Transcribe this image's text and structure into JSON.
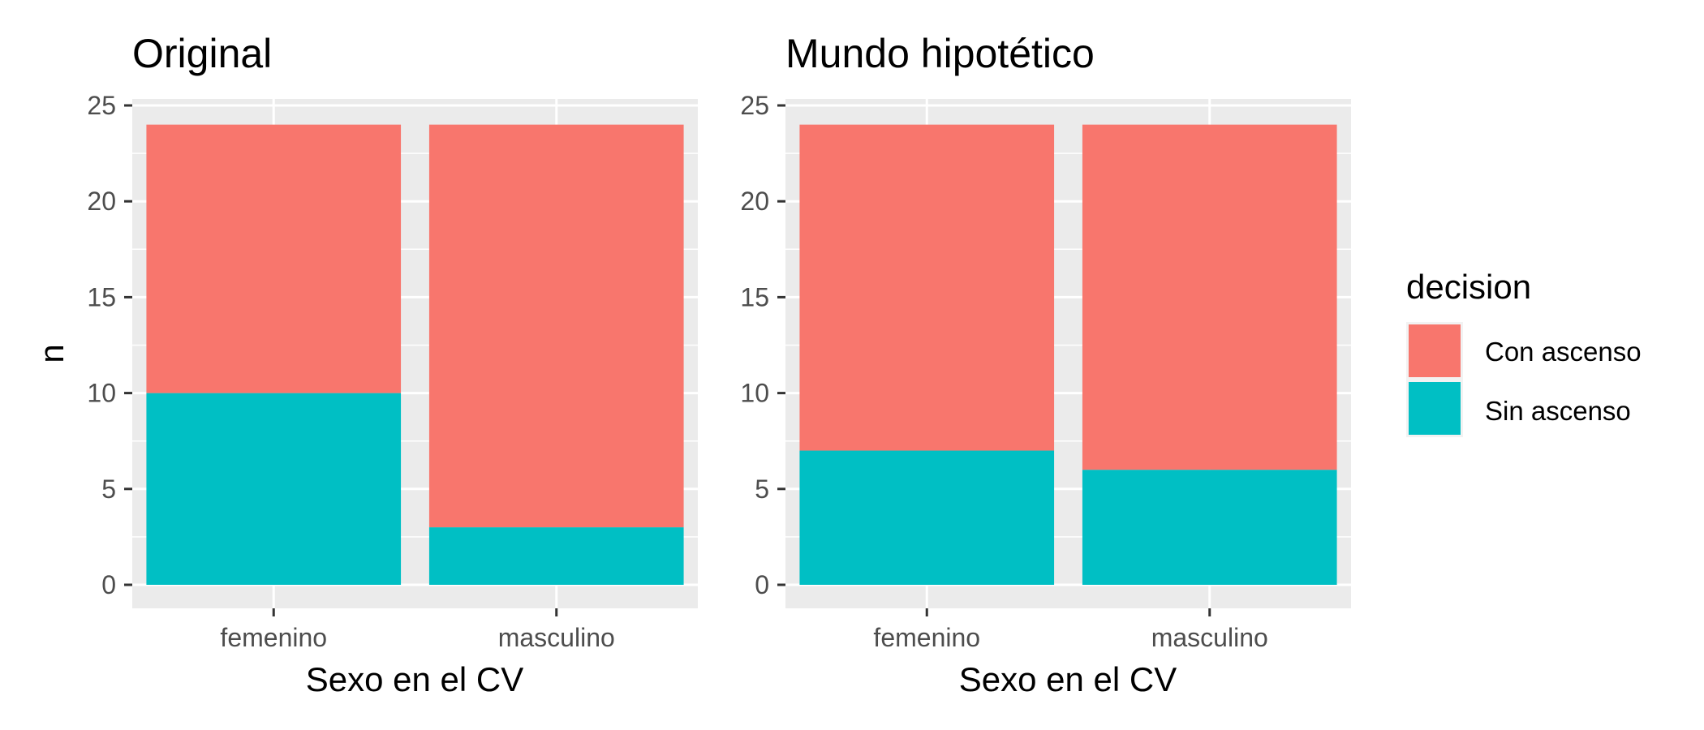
{
  "chart_data": [
    {
      "type": "bar",
      "stacked": true,
      "title": "Original",
      "xlabel": "Sexo en el CV",
      "ylabel": "n",
      "categories": [
        "femenino",
        "masculino"
      ],
      "ylim": [
        0,
        25
      ],
      "yticks": [
        "0",
        "5",
        "10",
        "15",
        "20",
        "25"
      ],
      "series": [
        {
          "name": "Sin ascenso",
          "values": [
            10,
            3
          ]
        },
        {
          "name": "Con ascenso",
          "values": [
            14,
            21
          ]
        }
      ],
      "grid": true
    },
    {
      "type": "bar",
      "stacked": true,
      "title": "Mundo hipotético",
      "xlabel": "Sexo en el CV",
      "ylabel": "",
      "categories": [
        "femenino",
        "masculino"
      ],
      "ylim": [
        0,
        25
      ],
      "yticks": [
        "0",
        "5",
        "10",
        "15",
        "20",
        "25"
      ],
      "series": [
        {
          "name": "Sin ascenso",
          "values": [
            7,
            6
          ]
        },
        {
          "name": "Con ascenso",
          "values": [
            17,
            18
          ]
        }
      ],
      "grid": true
    }
  ],
  "legend": {
    "title": "decision",
    "placement": "right",
    "items": [
      {
        "label": "Con ascenso",
        "color": "#F8766D"
      },
      {
        "label": "Sin ascenso",
        "color": "#00BFC4"
      }
    ]
  },
  "colors": {
    "Con ascenso": "#F8766D",
    "Sin ascenso": "#00BFC4",
    "panel": "#EBEBEB",
    "grid": "#FFFFFF"
  }
}
